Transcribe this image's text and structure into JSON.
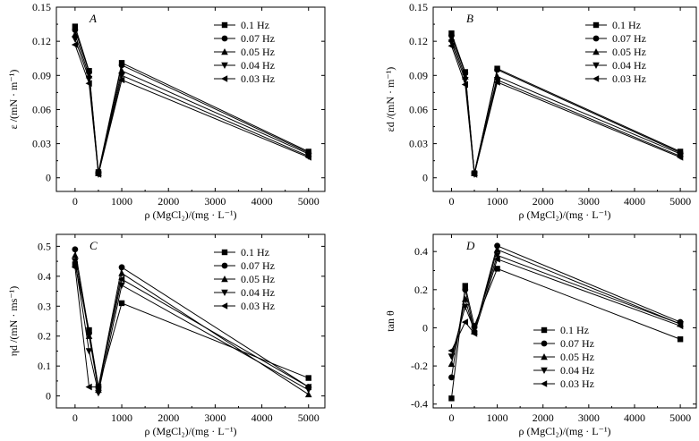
{
  "chart_data": [
    {
      "type": "line",
      "panel_label": "A",
      "xlabel": "ρ (MgCl₂)/(mg · L⁻¹)",
      "ylabel": "ε /(mN · m⁻¹)",
      "x": [
        0,
        300,
        500,
        1000,
        5000
      ],
      "xlim": [
        -400,
        5350
      ],
      "ylim": [
        -0.012,
        0.15
      ],
      "xticks": [
        "0",
        "1000",
        "2000",
        "3000",
        "4000",
        "5000"
      ],
      "yticks": [
        "0",
        "0.03",
        "0.06",
        "0.09",
        "0.12",
        "0.15"
      ],
      "legend_position": "top-right",
      "series": [
        {
          "name": "0.1 Hz",
          "marker": "square",
          "values": [
            0.133,
            0.094,
            0.005,
            0.101,
            0.023
          ]
        },
        {
          "name": "0.07 Hz",
          "marker": "circle",
          "values": [
            0.13,
            0.093,
            0.004,
            0.099,
            0.022
          ]
        },
        {
          "name": "0.05 Hz",
          "marker": "triangle-up",
          "values": [
            0.126,
            0.09,
            0.004,
            0.094,
            0.021
          ]
        },
        {
          "name": "0.04 Hz",
          "marker": "triangle-down",
          "values": [
            0.122,
            0.087,
            0.003,
            0.09,
            0.019
          ]
        },
        {
          "name": "0.03 Hz",
          "marker": "triangle-left",
          "values": [
            0.117,
            0.083,
            0.003,
            0.086,
            0.018
          ]
        }
      ]
    },
    {
      "type": "line",
      "panel_label": "B",
      "xlabel": "ρ (MgCl₂)/(mg · L⁻¹)",
      "ylabel": "εd /(mN · m⁻¹)",
      "x": [
        0,
        300,
        500,
        1000,
        5000
      ],
      "xlim": [
        -400,
        5350
      ],
      "ylim": [
        -0.012,
        0.15
      ],
      "xticks": [
        "0",
        "1000",
        "2000",
        "3000",
        "4000",
        "5000"
      ],
      "yticks": [
        "0",
        "0.03",
        "0.06",
        "0.09",
        "0.12",
        "0.15"
      ],
      "legend_position": "top-right",
      "series": [
        {
          "name": "0.1 Hz",
          "marker": "square",
          "values": [
            0.127,
            0.093,
            0.004,
            0.096,
            0.023
          ]
        },
        {
          "name": "0.07 Hz",
          "marker": "circle",
          "values": [
            0.125,
            0.092,
            0.004,
            0.095,
            0.022
          ]
        },
        {
          "name": "0.05 Hz",
          "marker": "triangle-up",
          "values": [
            0.122,
            0.089,
            0.004,
            0.089,
            0.021
          ]
        },
        {
          "name": "0.04 Hz",
          "marker": "triangle-down",
          "values": [
            0.119,
            0.086,
            0.003,
            0.086,
            0.019
          ]
        },
        {
          "name": "0.03 Hz",
          "marker": "triangle-left",
          "values": [
            0.116,
            0.082,
            0.003,
            0.084,
            0.018
          ]
        }
      ]
    },
    {
      "type": "line",
      "panel_label": "C",
      "xlabel": "ρ (MgCl₂)/(mg · L⁻¹)",
      "ylabel": "ηd /(mN · ms⁻¹)",
      "x": [
        0,
        300,
        500,
        1000,
        5000
      ],
      "xlim": [
        -400,
        5350
      ],
      "ylim": [
        -0.04,
        0.54
      ],
      "xticks": [
        "0",
        "1000",
        "2000",
        "3000",
        "4000",
        "5000"
      ],
      "yticks": [
        "0",
        "0.1",
        "0.2",
        "0.3",
        "0.4",
        "0.5"
      ],
      "legend_position": "top-right",
      "series": [
        {
          "name": "0.1 Hz",
          "marker": "square",
          "values": [
            0.44,
            0.22,
            0.03,
            0.31,
            0.06
          ]
        },
        {
          "name": "0.07 Hz",
          "marker": "circle",
          "values": [
            0.49,
            0.21,
            0.03,
            0.43,
            0.03
          ]
        },
        {
          "name": "0.05 Hz",
          "marker": "triangle-up",
          "values": [
            0.47,
            0.2,
            0.02,
            0.41,
            0.005
          ]
        },
        {
          "name": "0.04 Hz",
          "marker": "triangle-down",
          "values": [
            0.45,
            0.15,
            0.01,
            0.37,
            0.02
          ]
        },
        {
          "name": "0.03 Hz",
          "marker": "triangle-left",
          "values": [
            0.43,
            0.03,
            0.03,
            0.39,
            0.03
          ]
        }
      ]
    },
    {
      "type": "line",
      "panel_label": "D",
      "xlabel": "ρ (MgCl₂)/(mg · L⁻¹)",
      "ylabel": "tan θ",
      "x": [
        0,
        300,
        500,
        1000,
        5000
      ],
      "xlim": [
        -400,
        5350
      ],
      "ylim": [
        -0.42,
        0.49
      ],
      "xticks": [
        "0",
        "1000",
        "2000",
        "3000",
        "4000",
        "5000"
      ],
      "yticks": [
        "-0.4",
        "-0.2",
        "0",
        "0.2",
        "0.4"
      ],
      "legend_position": "bottom-left",
      "series": [
        {
          "name": "0.1 Hz",
          "marker": "square",
          "values": [
            -0.37,
            0.22,
            0.01,
            0.31,
            -0.06
          ]
        },
        {
          "name": "0.07 Hz",
          "marker": "circle",
          "values": [
            -0.26,
            0.2,
            -0.02,
            0.43,
            0.03
          ]
        },
        {
          "name": "0.05 Hz",
          "marker": "triangle-up",
          "values": [
            -0.19,
            0.15,
            -0.02,
            0.41,
            0.02
          ]
        },
        {
          "name": "0.04 Hz",
          "marker": "triangle-down",
          "values": [
            -0.15,
            0.11,
            -0.01,
            0.38,
            0.02
          ]
        },
        {
          "name": "0.03 Hz",
          "marker": "triangle-left",
          "values": [
            -0.12,
            0.03,
            -0.03,
            0.36,
            0.01
          ]
        }
      ]
    }
  ]
}
